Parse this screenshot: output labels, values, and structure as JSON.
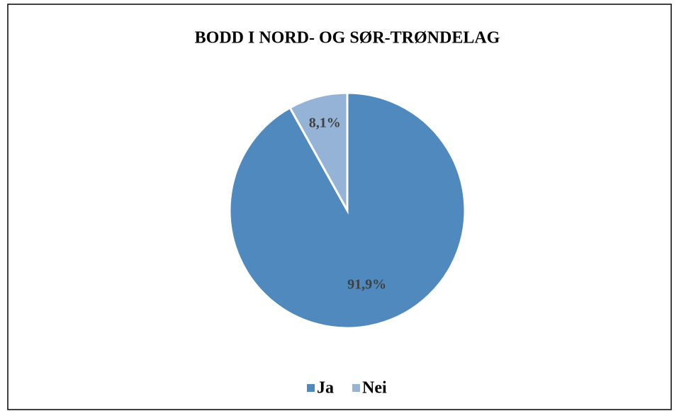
{
  "chart_data": {
    "type": "pie",
    "title": "BODD I NORD- OG SØR-TRØNDELAG",
    "categories": [
      "Ja",
      "Nei"
    ],
    "values": [
      91.9,
      8.1
    ],
    "value_labels": [
      "91,9%",
      "8,1%"
    ],
    "colors": [
      "#4f89bd",
      "#95b3d7"
    ],
    "legend": "bottom"
  }
}
